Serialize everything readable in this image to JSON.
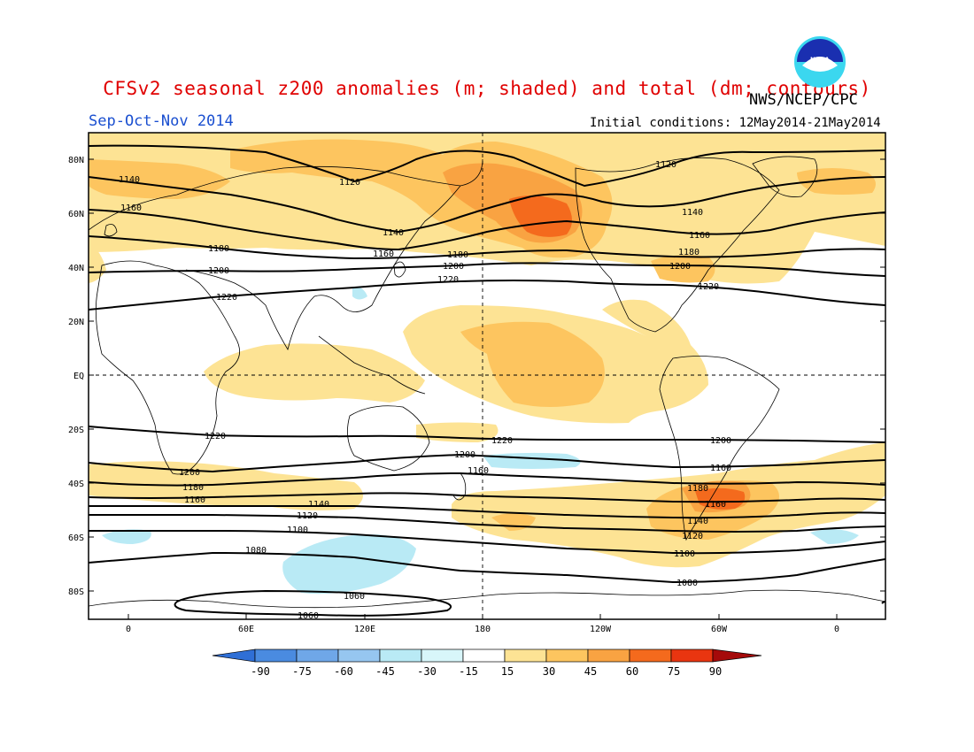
{
  "header": {
    "title": "CFSv2 seasonal z200 anomalies (m; shaded) and total (dm; contours)",
    "season": "Sep-Oct-Nov 2014",
    "agency": "NWS/NCEP/CPC",
    "initial_conditions": "Initial conditions: 12May2014-21May2014",
    "logo_text": "NOAA"
  },
  "map": {
    "lat_labels": [
      "80N",
      "60N",
      "40N",
      "20N",
      "EQ",
      "20S",
      "40S",
      "60S",
      "80S"
    ],
    "lon_labels": [
      "0",
      "60E",
      "120E",
      "180",
      "120W",
      "60W",
      "0"
    ],
    "contour_labels": [
      {
        "text": "1140"
      },
      {
        "text": "1120"
      },
      {
        "text": "1120"
      },
      {
        "text": "1160"
      },
      {
        "text": "1140"
      },
      {
        "text": "1140"
      },
      {
        "text": "1180"
      },
      {
        "text": "1160"
      },
      {
        "text": "1180"
      },
      {
        "text": "1160"
      },
      {
        "text": "1200"
      },
      {
        "text": "1200"
      },
      {
        "text": "1180"
      },
      {
        "text": "1220"
      },
      {
        "text": "1200"
      },
      {
        "text": "1220"
      },
      {
        "text": "1220"
      },
      {
        "text": "1220"
      },
      {
        "text": "1220"
      },
      {
        "text": "1200"
      },
      {
        "text": "1200"
      },
      {
        "text": "1200"
      },
      {
        "text": "1160"
      },
      {
        "text": "1180"
      },
      {
        "text": "1160"
      },
      {
        "text": "1160"
      },
      {
        "text": "1140"
      },
      {
        "text": "1120"
      },
      {
        "text": "1100"
      },
      {
        "text": "1140"
      },
      {
        "text": "1120"
      },
      {
        "text": "1080"
      },
      {
        "text": "1100"
      },
      {
        "text": "1080"
      },
      {
        "text": "1060"
      },
      {
        "text": "1060"
      },
      {
        "text": "1180"
      },
      {
        "text": "1160"
      }
    ]
  },
  "colorbar": {
    "labels": [
      "-90",
      "-75",
      "-60",
      "-45",
      "-30",
      "-15",
      "15",
      "30",
      "45",
      "60",
      "75",
      "90"
    ],
    "colors": [
      "#2f6fd6",
      "#4a8be0",
      "#6fa7e8",
      "#96c6f0",
      "#b9eaf5",
      "#ffffff",
      "#fde394",
      "#fdc55f",
      "#f9a342",
      "#f46a1d",
      "#e93510",
      "#c41208",
      "#a50a0a"
    ]
  },
  "colors": {
    "title": "#e00000",
    "season": "#1a4fd0"
  }
}
